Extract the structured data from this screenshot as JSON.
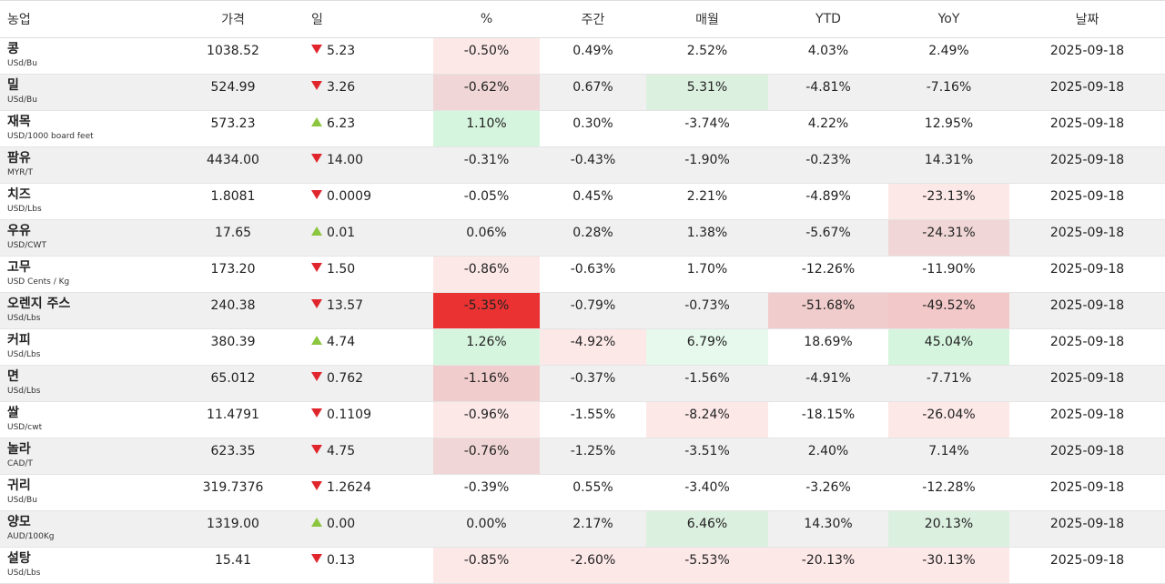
{
  "headers": [
    "농업",
    "가격",
    "일",
    "%",
    "주간",
    "매월",
    "YTD",
    "YoY",
    "날짜"
  ],
  "colors": {
    "up_arrow": "#8cc63f",
    "down_arrow": "#e0262c",
    "strong_negative": "#ea3232"
  },
  "rows": [
    {
      "name": "콩",
      "unit": "USd/Bu",
      "price": "1038.52",
      "dir": "down",
      "day": "5.23",
      "pct": "-0.50%",
      "week": "0.49%",
      "month": "2.52%",
      "ytd": "4.03%",
      "yoy": "2.49%",
      "date": "2025-09-18"
    },
    {
      "name": "밀",
      "unit": "USd/Bu",
      "price": "524.99",
      "dir": "down",
      "day": "3.26",
      "pct": "-0.62%",
      "week": "0.67%",
      "month": "5.31%",
      "ytd": "-4.81%",
      "yoy": "-7.16%",
      "date": "2025-09-18"
    },
    {
      "name": "재목",
      "unit": "USD/1000 board feet",
      "price": "573.23",
      "dir": "up",
      "day": "6.23",
      "pct": "1.10%",
      "week": "0.30%",
      "month": "-3.74%",
      "ytd": "4.22%",
      "yoy": "12.95%",
      "date": "2025-09-18"
    },
    {
      "name": "팜유",
      "unit": "MYR/T",
      "price": "4434.00",
      "dir": "down",
      "day": "14.00",
      "pct": "-0.31%",
      "week": "-0.43%",
      "month": "-1.90%",
      "ytd": "-0.23%",
      "yoy": "14.31%",
      "date": "2025-09-18"
    },
    {
      "name": "치즈",
      "unit": "USD/Lbs",
      "price": "1.8081",
      "dir": "down",
      "day": "0.0009",
      "pct": "-0.05%",
      "week": "0.45%",
      "month": "2.21%",
      "ytd": "-4.89%",
      "yoy": "-23.13%",
      "date": "2025-09-18"
    },
    {
      "name": "우유",
      "unit": "USD/CWT",
      "price": "17.65",
      "dir": "up",
      "day": "0.01",
      "pct": "0.06%",
      "week": "0.28%",
      "month": "1.38%",
      "ytd": "-5.67%",
      "yoy": "-24.31%",
      "date": "2025-09-18"
    },
    {
      "name": "고무",
      "unit": "USD Cents / Kg",
      "price": "173.20",
      "dir": "down",
      "day": "1.50",
      "pct": "-0.86%",
      "week": "-0.63%",
      "month": "1.70%",
      "ytd": "-12.26%",
      "yoy": "-11.90%",
      "date": "2025-09-18"
    },
    {
      "name": "오렌지 주스",
      "unit": "USd/Lbs",
      "price": "240.38",
      "dir": "down",
      "day": "13.57",
      "pct": "-5.35%",
      "week": "-0.79%",
      "month": "-0.73%",
      "ytd": "-51.68%",
      "yoy": "-49.52%",
      "date": "2025-09-18"
    },
    {
      "name": "커피",
      "unit": "USd/Lbs",
      "price": "380.39",
      "dir": "up",
      "day": "4.74",
      "pct": "1.26%",
      "week": "-4.92%",
      "month": "6.79%",
      "ytd": "18.69%",
      "yoy": "45.04%",
      "date": "2025-09-18"
    },
    {
      "name": "면",
      "unit": "USd/Lbs",
      "price": "65.012",
      "dir": "down",
      "day": "0.762",
      "pct": "-1.16%",
      "week": "-0.37%",
      "month": "-1.56%",
      "ytd": "-4.91%",
      "yoy": "-7.71%",
      "date": "2025-09-18"
    },
    {
      "name": "쌀",
      "unit": "USD/cwt",
      "price": "11.4791",
      "dir": "down",
      "day": "0.1109",
      "pct": "-0.96%",
      "week": "-1.55%",
      "month": "-8.24%",
      "ytd": "-18.15%",
      "yoy": "-26.04%",
      "date": "2025-09-18"
    },
    {
      "name": "놀라",
      "unit": "CAD/T",
      "price": "623.35",
      "dir": "down",
      "day": "4.75",
      "pct": "-0.76%",
      "week": "-1.25%",
      "month": "-3.51%",
      "ytd": "2.40%",
      "yoy": "7.14%",
      "date": "2025-09-18"
    },
    {
      "name": "귀리",
      "unit": "USd/Bu",
      "price": "319.7376",
      "dir": "down",
      "day": "1.2624",
      "pct": "-0.39%",
      "week": "0.55%",
      "month": "-3.40%",
      "ytd": "-3.26%",
      "yoy": "-12.28%",
      "date": "2025-09-18"
    },
    {
      "name": "양모",
      "unit": "AUD/100Kg",
      "price": "1319.00",
      "dir": "up",
      "day": "0.00",
      "pct": "0.00%",
      "week": "2.17%",
      "month": "6.46%",
      "ytd": "14.30%",
      "yoy": "20.13%",
      "date": "2025-09-18"
    },
    {
      "name": "설탕",
      "unit": "USd/Lbs",
      "price": "15.41",
      "dir": "down",
      "day": "0.13",
      "pct": "-0.85%",
      "week": "-2.60%",
      "month": "-5.53%",
      "ytd": "-20.13%",
      "yoy": "-30.13%",
      "date": "2025-09-18"
    }
  ]
}
